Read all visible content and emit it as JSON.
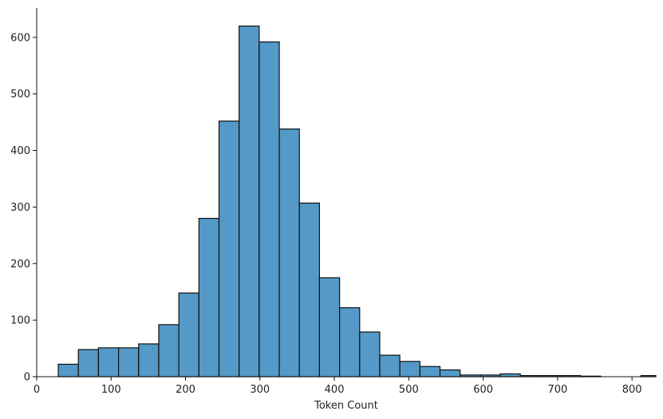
{
  "chart_data": {
    "type": "bar",
    "subtype": "histogram",
    "title": "",
    "xlabel": "Token Count",
    "ylabel": "",
    "xlim": [
      0,
      832
    ],
    "ylim": [
      0,
      652
    ],
    "x_ticks": [
      0,
      100,
      200,
      300,
      400,
      500,
      600,
      700,
      800
    ],
    "y_ticks": [
      0,
      100,
      200,
      300,
      400,
      500,
      600
    ],
    "grid": false,
    "bar_color": "#5499c7",
    "edge_color": "#111111",
    "bin_edges": [
      29,
      56,
      83,
      110,
      137,
      164,
      191,
      218,
      245,
      272,
      299,
      326,
      353,
      380,
      407,
      434,
      461,
      488,
      515,
      542,
      569,
      596,
      623,
      650,
      677,
      704,
      731,
      758,
      785,
      812,
      832
    ],
    "counts": [
      22,
      48,
      51,
      51,
      58,
      92,
      148,
      280,
      452,
      620,
      592,
      438,
      307,
      175,
      122,
      79,
      38,
      27,
      18,
      12,
      3,
      3,
      5,
      2,
      2,
      2,
      1,
      0,
      0,
      2
    ]
  }
}
